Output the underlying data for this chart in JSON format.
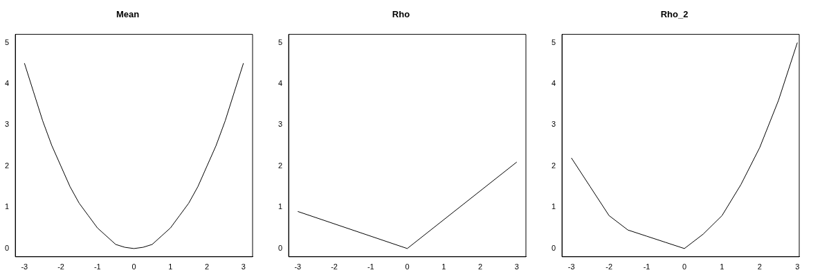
{
  "chart_data": [
    {
      "type": "line",
      "title": "Mean",
      "x": [
        -3,
        -2.75,
        -2.5,
        -2.25,
        -2,
        -1.75,
        -1.5,
        -1.25,
        -1,
        -0.75,
        -0.5,
        -0.25,
        0,
        0.25,
        0.5,
        0.75,
        1,
        1.25,
        1.5,
        1.75,
        2,
        2.25,
        2.5,
        2.75,
        3
      ],
      "values": [
        4.5,
        3.8,
        3.1,
        2.5,
        2,
        1.5,
        1.1,
        0.8,
        0.5,
        0.3,
        0.1,
        0.03,
        0,
        0.03,
        0.1,
        0.3,
        0.5,
        0.8,
        1.1,
        1.5,
        2,
        2.5,
        3.1,
        3.8,
        4.5
      ],
      "color": "#000000",
      "xlim": [
        -3.25,
        3.25
      ],
      "ylim": [
        -0.2,
        5.2
      ],
      "xticks": [
        -3,
        -2,
        -1,
        0,
        1,
        2,
        3
      ],
      "yticks": [
        0,
        1,
        2,
        3,
        4,
        5
      ],
      "grid": false
    },
    {
      "type": "line",
      "title": "Rho",
      "x": [
        -3,
        0,
        3
      ],
      "values": [
        0.9,
        0,
        2.1
      ],
      "color": "#000000",
      "xlim": [
        -3.25,
        3.25
      ],
      "ylim": [
        -0.2,
        5.2
      ],
      "xticks": [
        -3,
        -2,
        -1,
        0,
        1,
        2,
        3
      ],
      "yticks": [
        0,
        1,
        2,
        3,
        4,
        5
      ],
      "grid": false
    },
    {
      "type": "line",
      "title": "Rho_2",
      "x": [
        -3,
        -2.5,
        -2,
        -1.5,
        -1,
        -0.5,
        0,
        0.5,
        1,
        1.5,
        2,
        2.5,
        3
      ],
      "values": [
        2.2,
        1.5,
        0.8,
        0.45,
        0.3,
        0.15,
        0,
        0.35,
        0.8,
        1.55,
        2.45,
        3.6,
        5
      ],
      "color": "#000000",
      "xlim": [
        -3.25,
        3.05
      ],
      "ylim": [
        -0.2,
        5.2
      ],
      "xticks": [
        -3,
        -2,
        -1,
        0,
        1,
        2,
        3
      ],
      "yticks": [
        0,
        1,
        2,
        3,
        4,
        5
      ],
      "grid": false
    }
  ]
}
